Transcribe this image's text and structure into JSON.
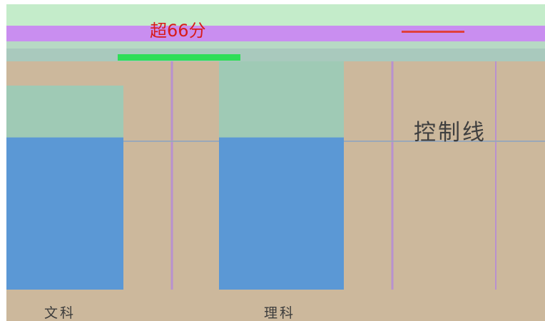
{
  "chart_data": {
    "type": "bar",
    "title": "超66分",
    "categories": [
      "文科",
      "理科"
    ],
    "series": [
      {
        "values": [
          400,
          400
        ]
      }
    ],
    "ylim": [
      0,
      600
    ],
    "annotations": [
      "控制线"
    ],
    "legend": "none",
    "grid": false
  },
  "colors": {
    "bar": "#5b98d5",
    "band": "#9fcab5",
    "column": "#ccb89c",
    "title": "#d81b1b",
    "header_top": "#c4ecca",
    "header_purple": "#c98ef0",
    "green_strip": "#2ede57"
  }
}
